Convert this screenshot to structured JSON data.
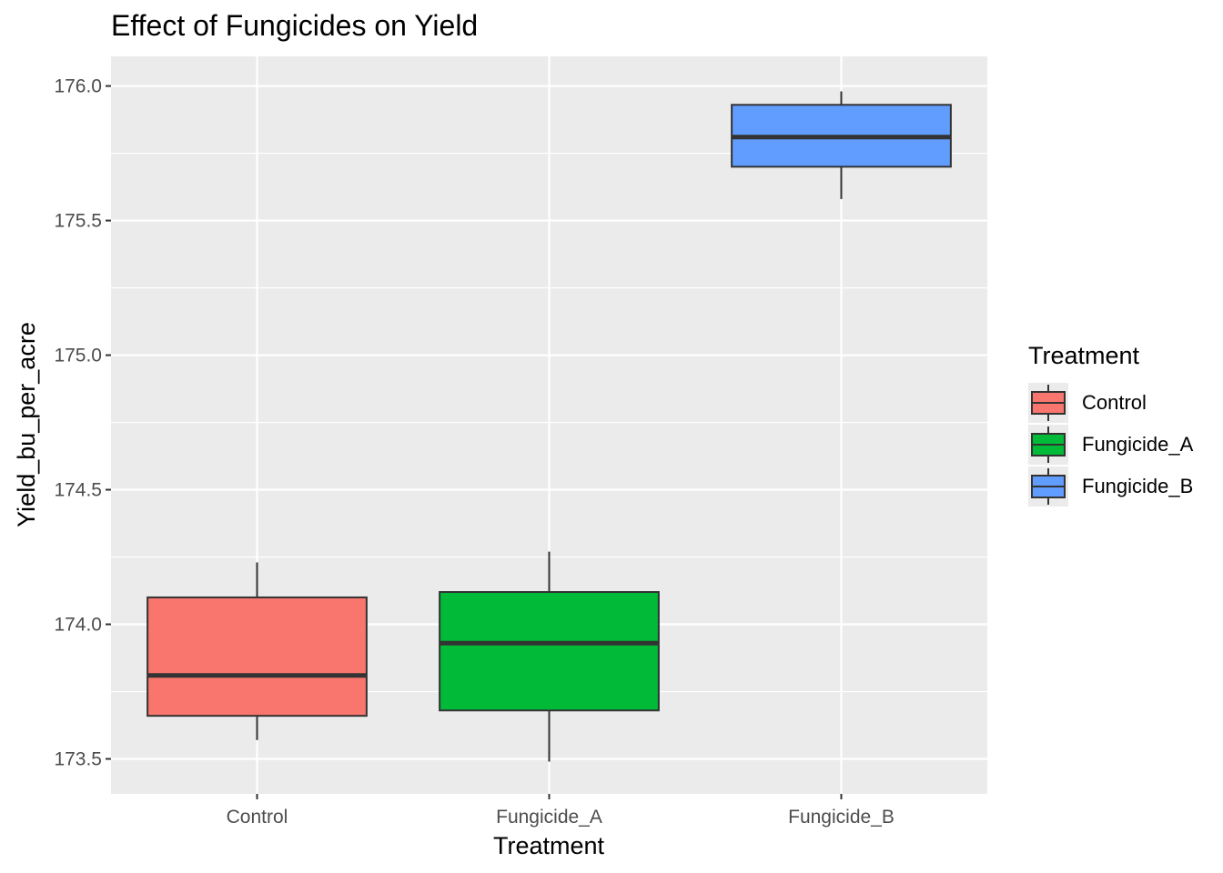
{
  "chart_data": {
    "type": "box",
    "title": "Effect of Fungicides on Yield",
    "xlabel": "Treatment",
    "ylabel": "Yield_bu_per_acre",
    "categories": [
      "Control",
      "Fungicide_A",
      "Fungicide_B"
    ],
    "ylim": [
      173.37,
      176.11
    ],
    "yticks": [
      173.5,
      174.0,
      174.5,
      175.0,
      175.5,
      176.0
    ],
    "ytick_labels": [
      "173.5",
      "174.0",
      "174.5",
      "175.0",
      "175.5",
      "176.0"
    ],
    "grid": true,
    "legend": {
      "title": "Treatment",
      "placement": "right",
      "entries": [
        "Control",
        "Fungicide_A",
        "Fungicide_B"
      ]
    },
    "series": [
      {
        "category": "Control",
        "min": 173.57,
        "q1": 173.66,
        "median": 173.81,
        "q3": 174.1,
        "max": 174.23,
        "color": "#F8766D"
      },
      {
        "category": "Fungicide_A",
        "min": 173.49,
        "q1": 173.68,
        "median": 173.93,
        "q3": 174.12,
        "max": 174.27,
        "color": "#00BA38"
      },
      {
        "category": "Fungicide_B",
        "min": 175.58,
        "q1": 175.7,
        "median": 175.81,
        "q3": 175.93,
        "max": 175.98,
        "color": "#619CFF"
      }
    ]
  },
  "colors": {
    "panel_background": "#ebebeb",
    "grid": "#ffffff",
    "box_outline": "#333333",
    "axis_text": "#4d4d4d"
  }
}
